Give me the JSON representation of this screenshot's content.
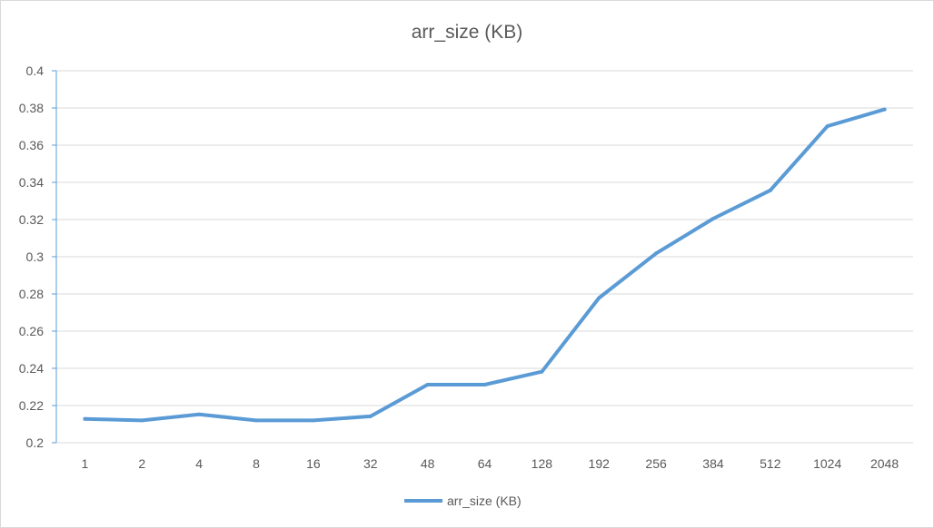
{
  "chart_data": {
    "type": "line",
    "title": "arr_size (KB)",
    "xlabel": "",
    "ylabel": "",
    "categories": [
      "1",
      "2",
      "4",
      "8",
      "16",
      "32",
      "48",
      "64",
      "128",
      "192",
      "256",
      "384",
      "512",
      "1024",
      "2048"
    ],
    "series": [
      {
        "name": "arr_size (KB)",
        "color": "#5b9bd5",
        "values": [
          0.2128,
          0.212,
          0.2152,
          0.212,
          0.212,
          0.2142,
          0.2312,
          0.2312,
          0.2382,
          0.2778,
          0.3018,
          0.3205,
          0.3357,
          0.3702,
          0.3792
        ]
      }
    ],
    "ylim": [
      0.2,
      0.4
    ],
    "yticks": [
      "0.4",
      "0.38",
      "0.36",
      "0.34",
      "0.32",
      "0.3",
      "0.28",
      "0.26",
      "0.24",
      "0.22",
      "0.2"
    ],
    "grid": true,
    "legend": "bottom",
    "gridline_color": "#d9d9d9",
    "axis_color": "#5b9bd5"
  }
}
